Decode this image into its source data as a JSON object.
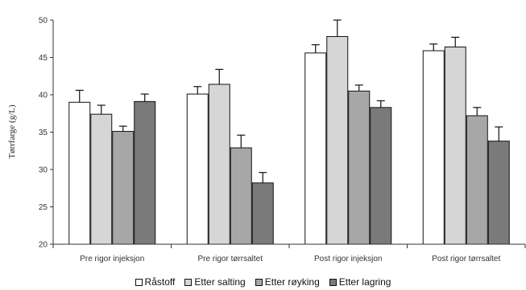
{
  "chart_data": {
    "type": "bar",
    "title": "",
    "xlabel": "",
    "ylabel": "Tørrfarge (g/L)",
    "ylim": [
      20,
      50
    ],
    "yticks": [
      20,
      25,
      30,
      35,
      40,
      45,
      50
    ],
    "grid": false,
    "legend_position": "bottom",
    "categories": [
      "Pre rigor injeksjon",
      "Pre rigor tørrsaltet",
      "Post rigor injeksjon",
      "Post rigor tørrsaltet"
    ],
    "series": [
      {
        "name": "Råstoff",
        "color": "#ffffff",
        "values": [
          39.0,
          40.1,
          45.6,
          45.9
        ],
        "errors": [
          1.6,
          1.0,
          1.1,
          0.9
        ]
      },
      {
        "name": "Etter salting",
        "color": "#d6d6d6",
        "values": [
          37.4,
          41.4,
          47.8,
          46.4
        ],
        "errors": [
          1.2,
          2.0,
          2.2,
          1.3
        ]
      },
      {
        "name": "Etter røyking",
        "color": "#a7a7a7",
        "values": [
          35.1,
          32.9,
          40.5,
          37.2
        ],
        "errors": [
          0.7,
          1.7,
          0.8,
          1.1
        ]
      },
      {
        "name": "Etter lagring",
        "color": "#7a7a7a",
        "values": [
          39.1,
          28.2,
          38.3,
          33.8
        ],
        "errors": [
          1.0,
          1.4,
          0.9,
          1.9
        ]
      }
    ]
  }
}
